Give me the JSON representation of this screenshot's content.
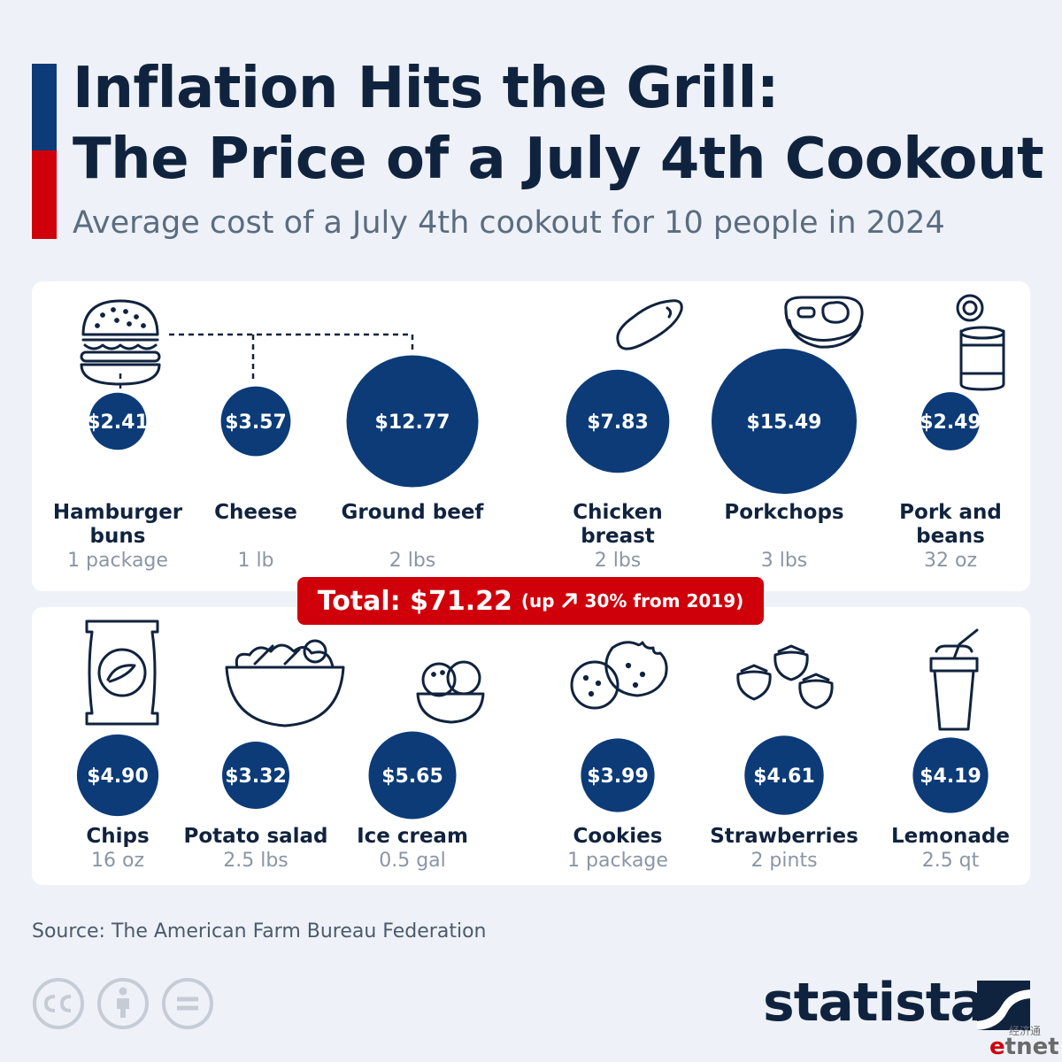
{
  "header": {
    "title_line1": "Inflation Hits the Grill:",
    "title_line2": "The Price of a July 4th Cookout",
    "subtitle": "Average cost of a July 4th cookout for 10 people in 2024"
  },
  "chart_data": {
    "type": "bubble",
    "title": "Inflation Hits the Grill: The Price of a July 4th Cookout",
    "subtitle": "Average cost of a July 4th cookout for 10 people in 2024",
    "unit": "USD",
    "rows": [
      {
        "items": [
          {
            "name": "Hamburger buns",
            "name_lines": [
              "Hamburger",
              "buns"
            ],
            "quantity": "1 package",
            "value": 2.41,
            "label": "$2.41",
            "icon": "burger-icon"
          },
          {
            "name": "Cheese",
            "name_lines": [
              "Cheese"
            ],
            "quantity": "1 lb",
            "value": 3.57,
            "label": "$3.57",
            "icon": "burger-icon"
          },
          {
            "name": "Ground beef",
            "name_lines": [
              "Ground beef"
            ],
            "quantity": "2 lbs",
            "value": 12.77,
            "label": "$12.77",
            "icon": "burger-icon"
          },
          {
            "name": "Chicken breast",
            "name_lines": [
              "Chicken",
              "breast"
            ],
            "quantity": "2 lbs",
            "value": 7.83,
            "label": "$7.83",
            "icon": "chicken-breast-icon"
          },
          {
            "name": "Porkchops",
            "name_lines": [
              "Porkchops"
            ],
            "quantity": "3 lbs",
            "value": 15.49,
            "label": "$15.49",
            "icon": "porkchop-icon"
          },
          {
            "name": "Pork and beans",
            "name_lines": [
              "Pork and",
              "beans"
            ],
            "quantity": "32 oz",
            "value": 2.49,
            "label": "$2.49",
            "icon": "can-icon"
          }
        ]
      },
      {
        "items": [
          {
            "name": "Chips",
            "name_lines": [
              "Chips"
            ],
            "quantity": "16 oz",
            "value": 4.9,
            "label": "$4.90",
            "icon": "chips-bag-icon"
          },
          {
            "name": "Potato salad",
            "name_lines": [
              "Potato salad"
            ],
            "quantity": "2.5 lbs",
            "value": 3.32,
            "label": "$3.32",
            "icon": "salad-bowl-icon"
          },
          {
            "name": "Ice cream",
            "name_lines": [
              "Ice cream"
            ],
            "quantity": "0.5 gal",
            "value": 5.65,
            "label": "$5.65",
            "icon": "ice-cream-icon"
          },
          {
            "name": "Cookies",
            "name_lines": [
              "Cookies"
            ],
            "quantity": "1 package",
            "value": 3.99,
            "label": "$3.99",
            "icon": "cookies-icon"
          },
          {
            "name": "Strawberries",
            "name_lines": [
              "Strawberries"
            ],
            "quantity": "2 pints",
            "value": 4.61,
            "label": "$4.61",
            "icon": "strawberries-icon"
          },
          {
            "name": "Lemonade",
            "name_lines": [
              "Lemonade"
            ],
            "quantity": "2.5 qt",
            "value": 4.19,
            "label": "$4.19",
            "icon": "lemonade-cup-icon"
          }
        ]
      }
    ],
    "total": {
      "label": "Total: $71.22",
      "value": 71.22,
      "change_text_before": "(up",
      "change_text_after": "30% from 2019)",
      "change_pct": 30
    }
  },
  "footer": {
    "source": "Source: The American Farm Bureau Federation",
    "logo_text": "statista",
    "cc_icons": [
      "cc-icon",
      "attribution-icon",
      "no-derivatives-icon"
    ],
    "watermark_cn": "经济通",
    "watermark_e": "e",
    "watermark_rest": "tnet"
  },
  "colors": {
    "background": "#eef2f8",
    "panel": "#ffffff",
    "bubble": "#0c3b78",
    "accent_red": "#d0000b",
    "text": "#10233e",
    "muted": "#8a96a4"
  }
}
